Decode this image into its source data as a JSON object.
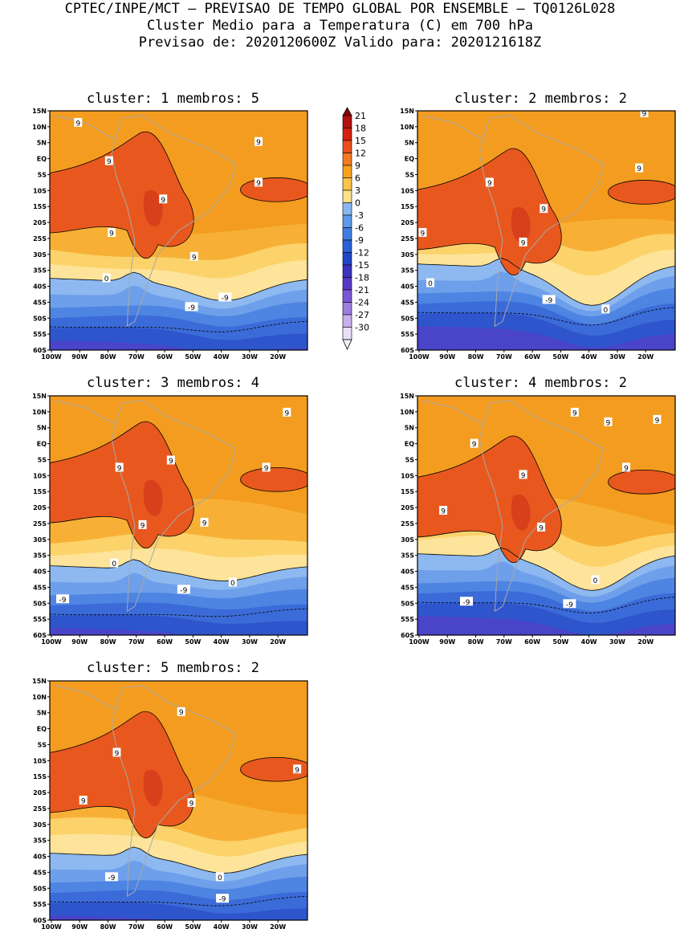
{
  "header": {
    "line1": "CPTEC/INPE/MCT — PREVISAO DE TEMPO GLOBAL POR ENSEMBLE — TQ0126L028",
    "line2": "Cluster Medio para a Temperatura (C) em 700 hPa",
    "line3": "Previsao de: 2020120600Z   Valido para: 2020121618Z"
  },
  "lat_labels": [
    "15N",
    "10N",
    "5N",
    "EQ",
    "5S",
    "10S",
    "15S",
    "20S",
    "25S",
    "30S",
    "35S",
    "40S",
    "45S",
    "50S",
    "55S",
    "60S"
  ],
  "lon_labels": [
    "100W",
    "90W",
    "80W",
    "70W",
    "60W",
    "50W",
    "40W",
    "30W",
    "20W"
  ],
  "colorbar": {
    "labels": [
      "21",
      "18",
      "15",
      "12",
      "9",
      "6",
      "3",
      "0",
      "-3",
      "-6",
      "-9",
      "-12",
      "-15",
      "-18",
      "-21",
      "-24",
      "-27",
      "-30"
    ],
    "colors": [
      "#8b0000",
      "#b01010",
      "#d42010",
      "#e8501c",
      "#f27a20",
      "#f7a21e",
      "#fcc44a",
      "#fde08a",
      "#8ab7f2",
      "#5f9ae9",
      "#3f7ee0",
      "#2b62d6",
      "#2147c6",
      "#3b33bf",
      "#5838c6",
      "#7a55d4",
      "#9c7de0",
      "#c7b0ec",
      "#e8e0f6"
    ]
  },
  "panels": [
    {
      "title": "cluster: 1   membros: 5",
      "contour_labels": [
        "9",
        "9",
        "9",
        "9",
        "9",
        "9",
        "9",
        "0",
        "-9",
        "-9"
      ]
    },
    {
      "title": "cluster: 2   membros: 2",
      "contour_labels": [
        "9",
        "9",
        "9",
        "9",
        "9",
        "9",
        "0",
        "0",
        "-9"
      ]
    },
    {
      "title": "cluster: 3   membros: 4",
      "contour_labels": [
        "9",
        "9",
        "9",
        "9",
        "9",
        "9",
        "0",
        "0",
        "-9",
        "-9"
      ]
    },
    {
      "title": "cluster: 4   membros: 2",
      "contour_labels": [
        "9",
        "9",
        "9",
        "9",
        "9",
        "9",
        "9",
        "9",
        "0",
        "-9",
        "-9"
      ]
    },
    {
      "title": "cluster: 5   membros: 2",
      "contour_labels": [
        "9",
        "9",
        "9",
        "9",
        "9",
        "0",
        "-9",
        "-9"
      ]
    }
  ]
}
